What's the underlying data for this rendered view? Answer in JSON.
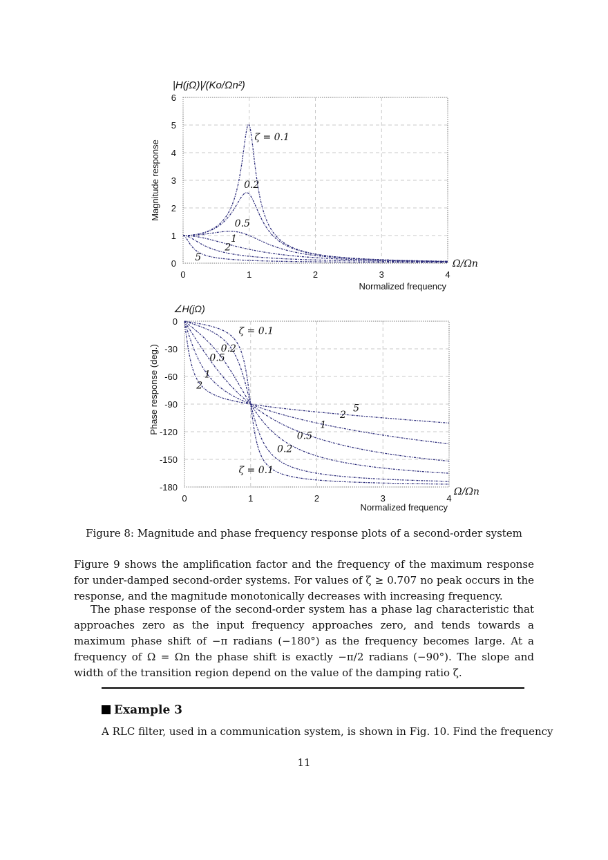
{
  "chart_data": [
    {
      "type": "line",
      "title": "|H(jΩ)|/(Ko/Ωn²)",
      "xlabel": "Normalized frequency",
      "x_symbol": "Ω/Ωn",
      "ylabel": "Magnitude response",
      "xlim": [
        0,
        4
      ],
      "ylim": [
        0,
        6
      ],
      "x_ticks": [
        "0",
        "1",
        "2",
        "3",
        "4"
      ],
      "y_ticks": [
        "0",
        "1",
        "2",
        "3",
        "4",
        "5",
        "6"
      ],
      "grid": true,
      "series": [
        {
          "name": "ζ = 0.1",
          "zeta": 0.1
        },
        {
          "name": "0.2",
          "zeta": 0.2
        },
        {
          "name": "0.5",
          "zeta": 0.5
        },
        {
          "name": "1",
          "zeta": 1
        },
        {
          "name": "2",
          "zeta": 2
        },
        {
          "name": "5",
          "zeta": 5
        }
      ],
      "annotations": [
        {
          "text": "ζ = 0.1",
          "x": 1.08,
          "y": 4.45
        },
        {
          "text": "0.2",
          "x": 0.92,
          "y": 2.72
        },
        {
          "text": "0.5",
          "x": 0.78,
          "y": 1.32
        },
        {
          "text": "1",
          "x": 0.72,
          "y": 0.78
        },
        {
          "text": "2",
          "x": 0.63,
          "y": 0.46
        },
        {
          "text": "5",
          "x": 0.18,
          "y": 0.1
        }
      ],
      "line_color": "#2b2b7a"
    },
    {
      "type": "line",
      "title": "∠H(jΩ)",
      "xlabel": "Normalized frequency",
      "x_symbol": "Ω/Ωn",
      "ylabel": "Phase response (deg.)",
      "xlim": [
        0,
        4
      ],
      "ylim": [
        -180,
        0
      ],
      "x_ticks": [
        "0",
        "1",
        "2",
        "3",
        "4"
      ],
      "y_ticks": [
        "0",
        "-30",
        "-60",
        "-90",
        "-120",
        "-150",
        "-180"
      ],
      "grid": true,
      "series": [
        {
          "name": "ζ = 0.1",
          "zeta": 0.1
        },
        {
          "name": "0.2",
          "zeta": 0.2
        },
        {
          "name": "0.5",
          "zeta": 0.5
        },
        {
          "name": "1",
          "zeta": 1
        },
        {
          "name": "2",
          "zeta": 2
        },
        {
          "name": "5",
          "zeta": 5
        }
      ],
      "annotations": [
        {
          "text": "ζ = 0.1",
          "x": 0.82,
          "y": -14
        },
        {
          "text": "0.2",
          "x": 0.55,
          "y": -33
        },
        {
          "text": "0.5",
          "x": 0.38,
          "y": -43
        },
        {
          "text": "1",
          "x": 0.3,
          "y": -61
        },
        {
          "text": "2",
          "x": 0.18,
          "y": -73
        },
        {
          "text": "ζ = 0.1",
          "x": 0.82,
          "y": -165
        },
        {
          "text": "0.2",
          "x": 1.4,
          "y": -142
        },
        {
          "text": "0.5",
          "x": 1.7,
          "y": -128
        },
        {
          "text": "1",
          "x": 2.05,
          "y": -116
        },
        {
          "text": "2",
          "x": 2.35,
          "y": -105
        },
        {
          "text": "5",
          "x": 2.55,
          "y": -98
        }
      ],
      "line_color": "#2b2b7a"
    }
  ],
  "caption": "Figure 8: Magnitude and phase frequency response plots of a second-order system",
  "paragraphs": [
    "Figure 9 shows the amplification factor and the frequency of the maximum response for under-damped second-order systems. For values of ζ ≥ 0.707 no peak occurs in the response, and the magnitude monotonically decreases with increasing frequency.",
    "The phase response of the second-order system has a phase lag characteristic that approaches zero as the input frequency approaches zero, and tends towards a maximum phase shift of −π radians (−180°) as the frequency becomes large. At a frequency of Ω = Ωn the phase shift is exactly −π/2 radians (−90°). The slope and width of the transition region depend on the value of the damping ratio ζ."
  ],
  "example": {
    "heading": "Example 3",
    "text": "A RLC filter, used in a communication system, is shown in Fig. 10. Find the frequency"
  },
  "page_number": "11"
}
